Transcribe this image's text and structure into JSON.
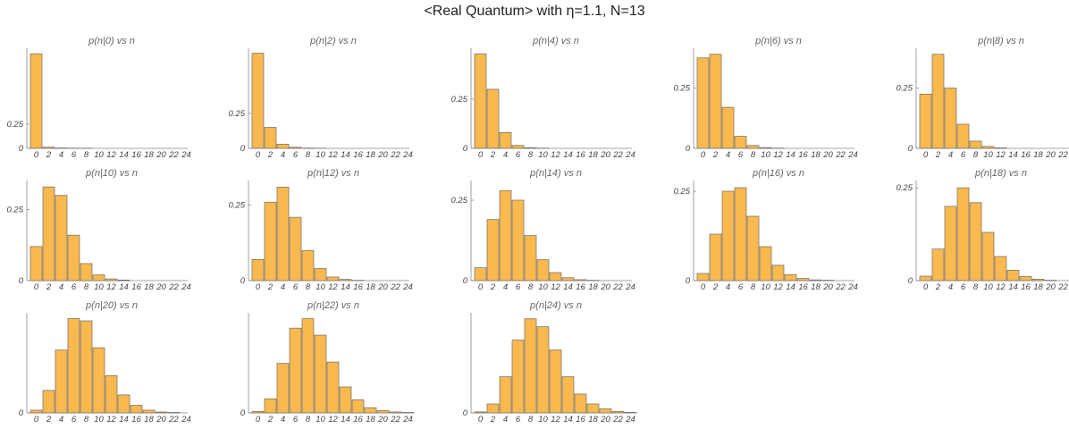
{
  "suptitle": "<Real Quantum> with η=1.1, N=13",
  "chart_data": [
    {
      "type": "bar",
      "title": "p(n|0) vs n",
      "x": [
        0,
        2,
        4,
        6,
        8,
        10,
        12,
        14,
        16,
        18,
        20,
        22,
        24
      ],
      "values": [
        0.98,
        0.012,
        0.004,
        0.002,
        0.001,
        0,
        0,
        0,
        0,
        0,
        0,
        0,
        0
      ],
      "ylim": [
        0,
        1.0
      ],
      "yticks": [
        0,
        0.25
      ],
      "xticks": [
        0,
        2,
        4,
        6,
        8,
        10,
        12,
        14,
        16,
        18,
        20,
        22,
        24
      ]
    },
    {
      "type": "bar",
      "title": "p(n|2) vs n",
      "x": [
        0,
        2,
        4,
        6,
        8,
        10,
        12,
        14,
        16,
        18,
        20,
        22,
        24
      ],
      "values": [
        0.68,
        0.15,
        0.03,
        0.008,
        0.002,
        0.001,
        0,
        0,
        0,
        0,
        0,
        0,
        0
      ],
      "ylim": [
        0,
        0.69
      ],
      "yticks": [
        0,
        0.25
      ],
      "xticks": [
        0,
        2,
        4,
        6,
        8,
        10,
        12,
        14,
        16,
        18,
        20,
        22,
        24
      ]
    },
    {
      "type": "bar",
      "title": "p(n|4) vs n",
      "x": [
        0,
        2,
        4,
        6,
        8,
        10,
        12,
        14,
        16,
        18,
        20,
        22,
        24
      ],
      "values": [
        0.48,
        0.3,
        0.08,
        0.015,
        0.003,
        0.001,
        0,
        0,
        0,
        0,
        0,
        0,
        0
      ],
      "ylim": [
        0,
        0.49
      ],
      "yticks": [
        0,
        0.25
      ],
      "xticks": [
        0,
        2,
        4,
        6,
        8,
        10,
        12,
        14,
        16,
        18,
        20,
        22,
        24
      ]
    },
    {
      "type": "bar",
      "title": "p(n|6) vs n",
      "x": [
        0,
        2,
        4,
        6,
        8,
        10,
        12,
        14,
        16,
        18,
        20,
        22,
        24
      ],
      "values": [
        0.375,
        0.39,
        0.17,
        0.05,
        0.012,
        0.003,
        0.001,
        0,
        0,
        0,
        0,
        0,
        0
      ],
      "ylim": [
        0,
        0.4
      ],
      "yticks": [
        0,
        0.25
      ],
      "xticks": [
        0,
        2,
        4,
        6,
        8,
        10,
        12,
        14,
        16,
        18,
        20,
        22,
        24
      ]
    },
    {
      "type": "bar",
      "title": "p(n|8) vs n",
      "x": [
        0,
        2,
        4,
        6,
        8,
        10,
        12,
        14,
        16,
        18,
        20,
        22,
        24
      ],
      "values": [
        0.225,
        0.39,
        0.25,
        0.1,
        0.03,
        0.008,
        0.002,
        0,
        0,
        0,
        0,
        0,
        0
      ],
      "ylim": [
        0,
        0.4
      ],
      "yticks": [
        0,
        0.25
      ],
      "xticks": [
        0,
        2,
        4,
        6,
        8,
        10,
        12,
        14,
        16,
        18,
        20,
        22,
        24
      ]
    },
    {
      "type": "bar",
      "title": "p(n|10) vs n",
      "x": [
        0,
        2,
        4,
        6,
        8,
        10,
        12,
        14,
        16,
        18,
        20,
        22,
        24
      ],
      "values": [
        0.12,
        0.33,
        0.3,
        0.16,
        0.06,
        0.02,
        0.006,
        0.002,
        0,
        0,
        0,
        0,
        0
      ],
      "ylim": [
        0,
        0.34
      ],
      "yticks": [
        0,
        0.25
      ],
      "xticks": [
        0,
        2,
        4,
        6,
        8,
        10,
        12,
        14,
        16,
        18,
        20,
        22,
        24
      ]
    },
    {
      "type": "bar",
      "title": "p(n|12) vs n",
      "x": [
        0,
        2,
        4,
        6,
        8,
        10,
        12,
        14,
        16,
        18,
        20,
        22,
        24
      ],
      "values": [
        0.07,
        0.26,
        0.31,
        0.21,
        0.1,
        0.04,
        0.012,
        0.004,
        0.001,
        0,
        0,
        0,
        0
      ],
      "ylim": [
        0,
        0.32
      ],
      "yticks": [
        0,
        0.25
      ],
      "xticks": [
        0,
        2,
        4,
        6,
        8,
        10,
        12,
        14,
        16,
        18,
        20,
        22,
        24
      ]
    },
    {
      "type": "bar",
      "title": "p(n|14) vs n",
      "x": [
        0,
        2,
        4,
        6,
        8,
        10,
        12,
        14,
        16,
        18,
        20,
        22,
        24
      ],
      "values": [
        0.04,
        0.19,
        0.28,
        0.25,
        0.14,
        0.065,
        0.025,
        0.009,
        0.003,
        0.001,
        0,
        0,
        0
      ],
      "ylim": [
        0,
        0.3
      ],
      "yticks": [
        0,
        0.25
      ],
      "xticks": [
        0,
        2,
        4,
        6,
        8,
        10,
        12,
        14,
        16,
        18,
        20,
        22,
        24
      ]
    },
    {
      "type": "bar",
      "title": "p(n|16) vs n",
      "x": [
        0,
        2,
        4,
        6,
        8,
        10,
        12,
        14,
        16,
        18,
        20,
        22,
        24
      ],
      "values": [
        0.02,
        0.13,
        0.25,
        0.26,
        0.18,
        0.095,
        0.043,
        0.017,
        0.006,
        0.002,
        0.001,
        0,
        0
      ],
      "ylim": [
        0,
        0.27
      ],
      "yticks": [
        0,
        0.25
      ],
      "xticks": [
        0,
        2,
        4,
        6,
        8,
        10,
        12,
        14,
        16,
        18,
        20,
        22,
        24
      ]
    },
    {
      "type": "bar",
      "title": "p(n|18) vs n",
      "x": [
        0,
        2,
        4,
        6,
        8,
        10,
        12,
        14,
        16,
        18,
        20,
        22,
        24
      ],
      "values": [
        0.012,
        0.085,
        0.2,
        0.25,
        0.21,
        0.13,
        0.065,
        0.028,
        0.011,
        0.004,
        0.001,
        0,
        0
      ],
      "ylim": [
        0,
        0.26
      ],
      "yticks": [
        0,
        0.25
      ],
      "xticks": [
        0,
        2,
        4,
        6,
        8,
        10,
        12,
        14,
        16,
        18,
        20,
        22,
        24
      ]
    },
    {
      "type": "bar",
      "title": "p(n|20) vs n",
      "x": [
        0,
        2,
        4,
        6,
        8,
        10,
        12,
        14,
        16,
        18,
        20,
        22,
        24
      ],
      "values": [
        0.006,
        0.05,
        0.14,
        0.21,
        0.205,
        0.145,
        0.083,
        0.04,
        0.017,
        0.006,
        0.002,
        0.001,
        0
      ],
      "ylim": [
        0,
        0.215
      ],
      "yticks": [
        0
      ],
      "xticks": [
        0,
        2,
        4,
        6,
        8,
        10,
        12,
        14,
        16,
        18,
        20,
        22,
        24
      ]
    },
    {
      "type": "bar",
      "title": "p(n|22) vs n",
      "x": [
        0,
        2,
        4,
        6,
        8,
        10,
        12,
        14,
        16,
        18,
        20,
        22,
        24
      ],
      "values": [
        0.003,
        0.03,
        0.105,
        0.18,
        0.2,
        0.165,
        0.108,
        0.055,
        0.028,
        0.011,
        0.005,
        0.002,
        0.001
      ],
      "ylim": [
        0,
        0.205
      ],
      "yticks": [
        0
      ],
      "xticks": [
        0,
        2,
        4,
        6,
        8,
        10,
        12,
        14,
        16,
        18,
        20,
        22,
        24
      ]
    },
    {
      "type": "bar",
      "title": "p(n|24) vs n",
      "x": [
        0,
        2,
        4,
        6,
        8,
        10,
        12,
        14,
        16,
        18,
        20,
        22,
        24
      ],
      "values": [
        0.002,
        0.018,
        0.073,
        0.147,
        0.19,
        0.174,
        0.127,
        0.073,
        0.038,
        0.018,
        0.008,
        0.003,
        0.001
      ],
      "ylim": [
        0,
        0.195
      ],
      "yticks": [
        0
      ],
      "xticks": [
        0,
        2,
        4,
        6,
        8,
        10,
        12,
        14,
        16,
        18,
        20,
        22,
        24
      ]
    }
  ]
}
